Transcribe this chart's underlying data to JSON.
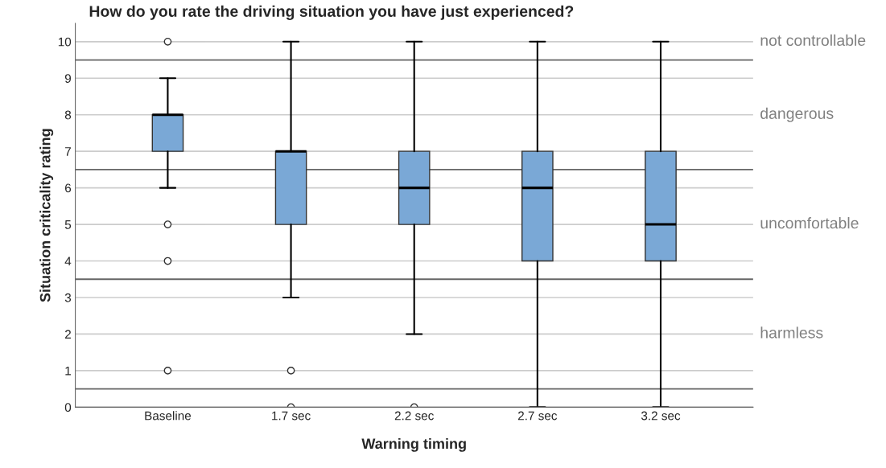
{
  "chart_data": {
    "type": "box",
    "title": "How do you rate the driving situation you have just experienced?",
    "xlabel": "Warning timing",
    "ylabel": "Situation criticality rating",
    "categories": [
      "Baseline",
      "1.7 sec",
      "2.2 sec",
      "2.7 sec",
      "3.2 sec"
    ],
    "color": "#7aa8d6",
    "boxes": [
      {
        "low": 6,
        "q1": 7,
        "median": 8,
        "q3": 8,
        "high": 9,
        "outliers": [
          10,
          5,
          4,
          1
        ]
      },
      {
        "low": 3,
        "q1": 5,
        "median": 7,
        "q3": 7,
        "high": 10,
        "outliers": [
          1,
          0
        ]
      },
      {
        "low": 2,
        "q1": 5,
        "median": 6,
        "q3": 7,
        "high": 10,
        "outliers": [
          0
        ]
      },
      {
        "low": 0,
        "q1": 4,
        "median": 6,
        "q3": 7,
        "high": 10
      },
      {
        "low": 0,
        "q1": 4,
        "median": 5,
        "q3": 7,
        "high": 10
      }
    ],
    "ylim": [
      0,
      10.5
    ],
    "yticks": [
      0,
      1,
      2,
      3,
      4,
      5,
      6,
      7,
      8,
      9,
      10
    ],
    "grid": "y",
    "ref_lines": [
      {
        "axis": "y",
        "value": 0.5,
        "color": "#666666"
      },
      {
        "axis": "y",
        "value": 3.5,
        "color": "#666666"
      },
      {
        "axis": "y",
        "value": 6.5,
        "color": "#666666"
      },
      {
        "axis": "y",
        "value": 9.5,
        "color": "#666666"
      }
    ],
    "annotations": [
      "not controllable",
      "dangerous",
      "uncomfortable",
      "harmless"
    ]
  }
}
